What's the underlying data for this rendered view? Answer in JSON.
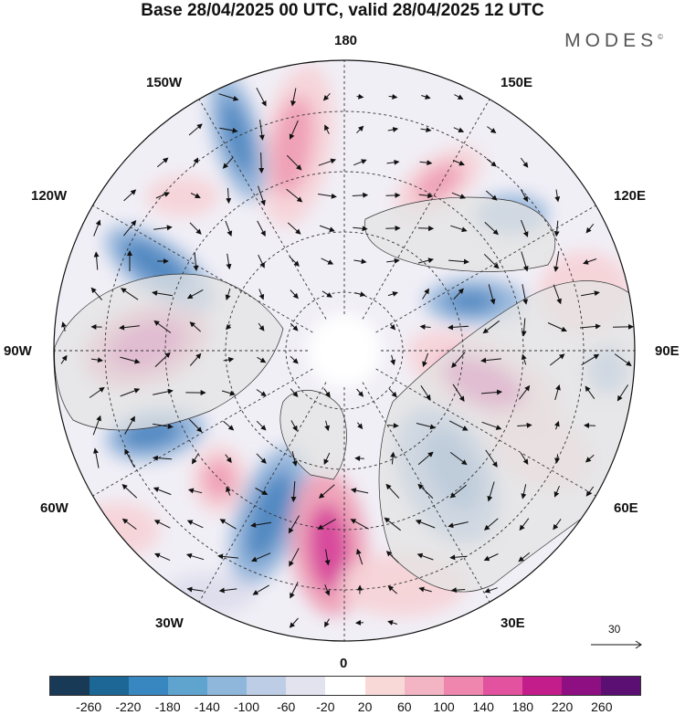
{
  "header": {
    "title": "Base 28/04/2025 00 UTC, valid 28/04/2025 12 UTC",
    "brand": "MODES",
    "brand_mark": "©"
  },
  "map": {
    "projection": "polar stereographic (north pole)",
    "longitude_labels": {
      "top": "180",
      "top_left": "150W",
      "top_right": "150E",
      "upper_left": "120W",
      "upper_right": "120E",
      "left": "90W",
      "right": "90E",
      "lower_left": "60W",
      "lower_right": "60E",
      "bottom_left": "30W",
      "bottom_right": "30E",
      "bottom": "0"
    },
    "vector_key": {
      "label": "30"
    },
    "colors": {
      "neg_strong": "#4c85c0",
      "neg_medium": "#8db0d8",
      "neg_light": "#dcdcec",
      "pos_light": "#f6d2d6",
      "pos_medium": "#ee9cb4",
      "pos_strong": "#d6409a",
      "land": "#e3e3e3"
    }
  },
  "colorbar": {
    "colors": [
      "#183a56",
      "#1d6796",
      "#3987c1",
      "#5fa3cf",
      "#8fb7dc",
      "#bdcde6",
      "#e3e3f0",
      "#ffffff",
      "#f9d8d8",
      "#f3b5c3",
      "#ee86ad",
      "#e3529e",
      "#c21d8b",
      "#8e0f82",
      "#5b0f73"
    ],
    "tick_labels": [
      "-260",
      "-220",
      "-180",
      "-140",
      "-100",
      "-60",
      "-20",
      "20",
      "60",
      "100",
      "140",
      "180",
      "220",
      "260"
    ]
  }
}
